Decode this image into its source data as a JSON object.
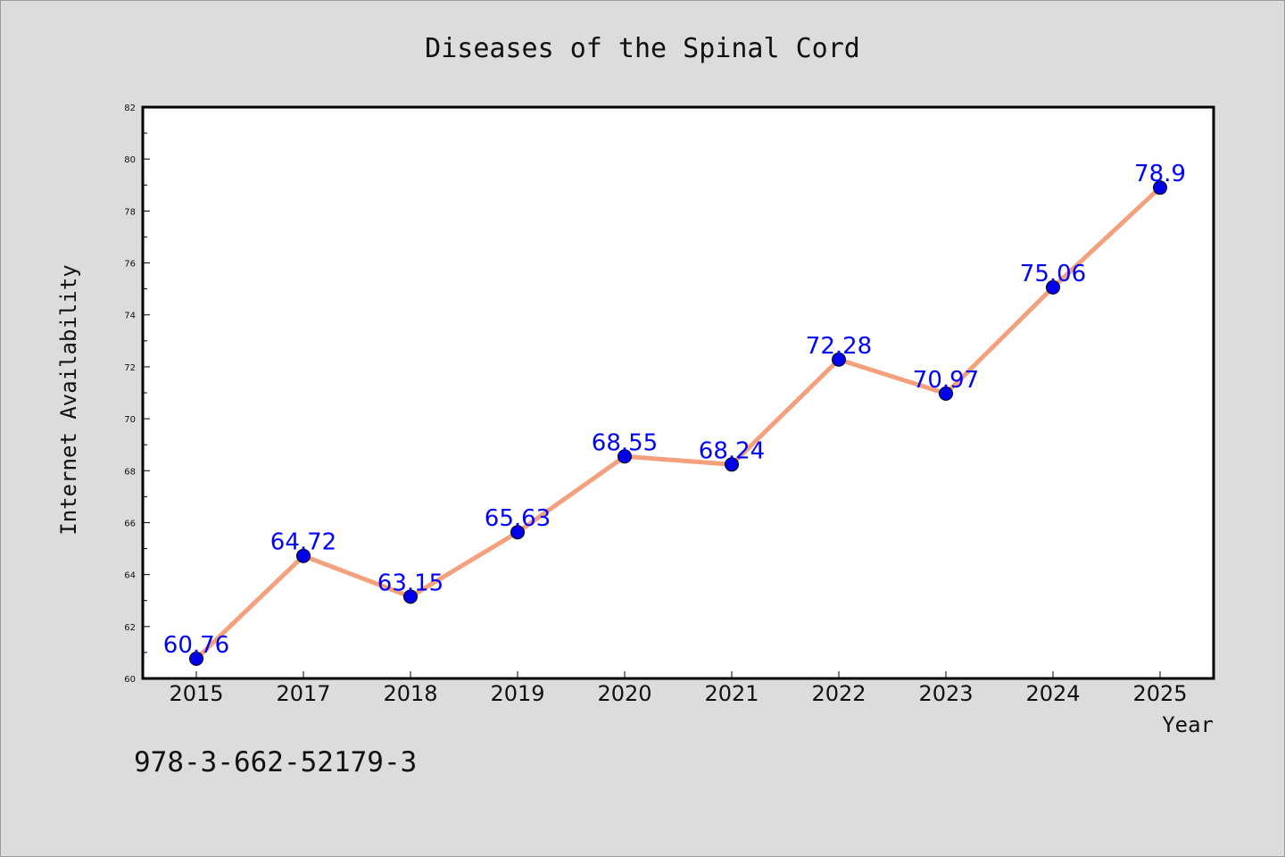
{
  "chart_data": {
    "type": "line",
    "title": "Diseases of the Spinal Cord",
    "xlabel": "Year",
    "ylabel": "Internet Availability",
    "categories": [
      "2015",
      "2017",
      "2018",
      "2019",
      "2020",
      "2021",
      "2022",
      "2023",
      "2024",
      "2025"
    ],
    "series": [
      {
        "values": [
          60.76,
          64.72,
          63.15,
          65.63,
          68.55,
          68.24,
          72.28,
          70.97,
          75.06,
          78.9
        ]
      }
    ],
    "data_labels": [
      "60.76",
      "64.72",
      "63.15",
      "65.63",
      "68.55",
      "68.24",
      "72.28",
      "70.97",
      "75.06",
      "78.9"
    ],
    "ylim": [
      60,
      82
    ],
    "yticks": [
      "60",
      "62",
      "64",
      "66",
      "68",
      "70",
      "72",
      "74",
      "76",
      "78",
      "80",
      "82"
    ],
    "grid": false,
    "colors": {
      "line": "#f4a07c",
      "marker": "#0000ee",
      "label": "#0000ff",
      "background": "#dcdcdc",
      "plot_background": "#ffffff"
    }
  },
  "footer": {
    "isbn": "978-3-662-52179-3"
  }
}
